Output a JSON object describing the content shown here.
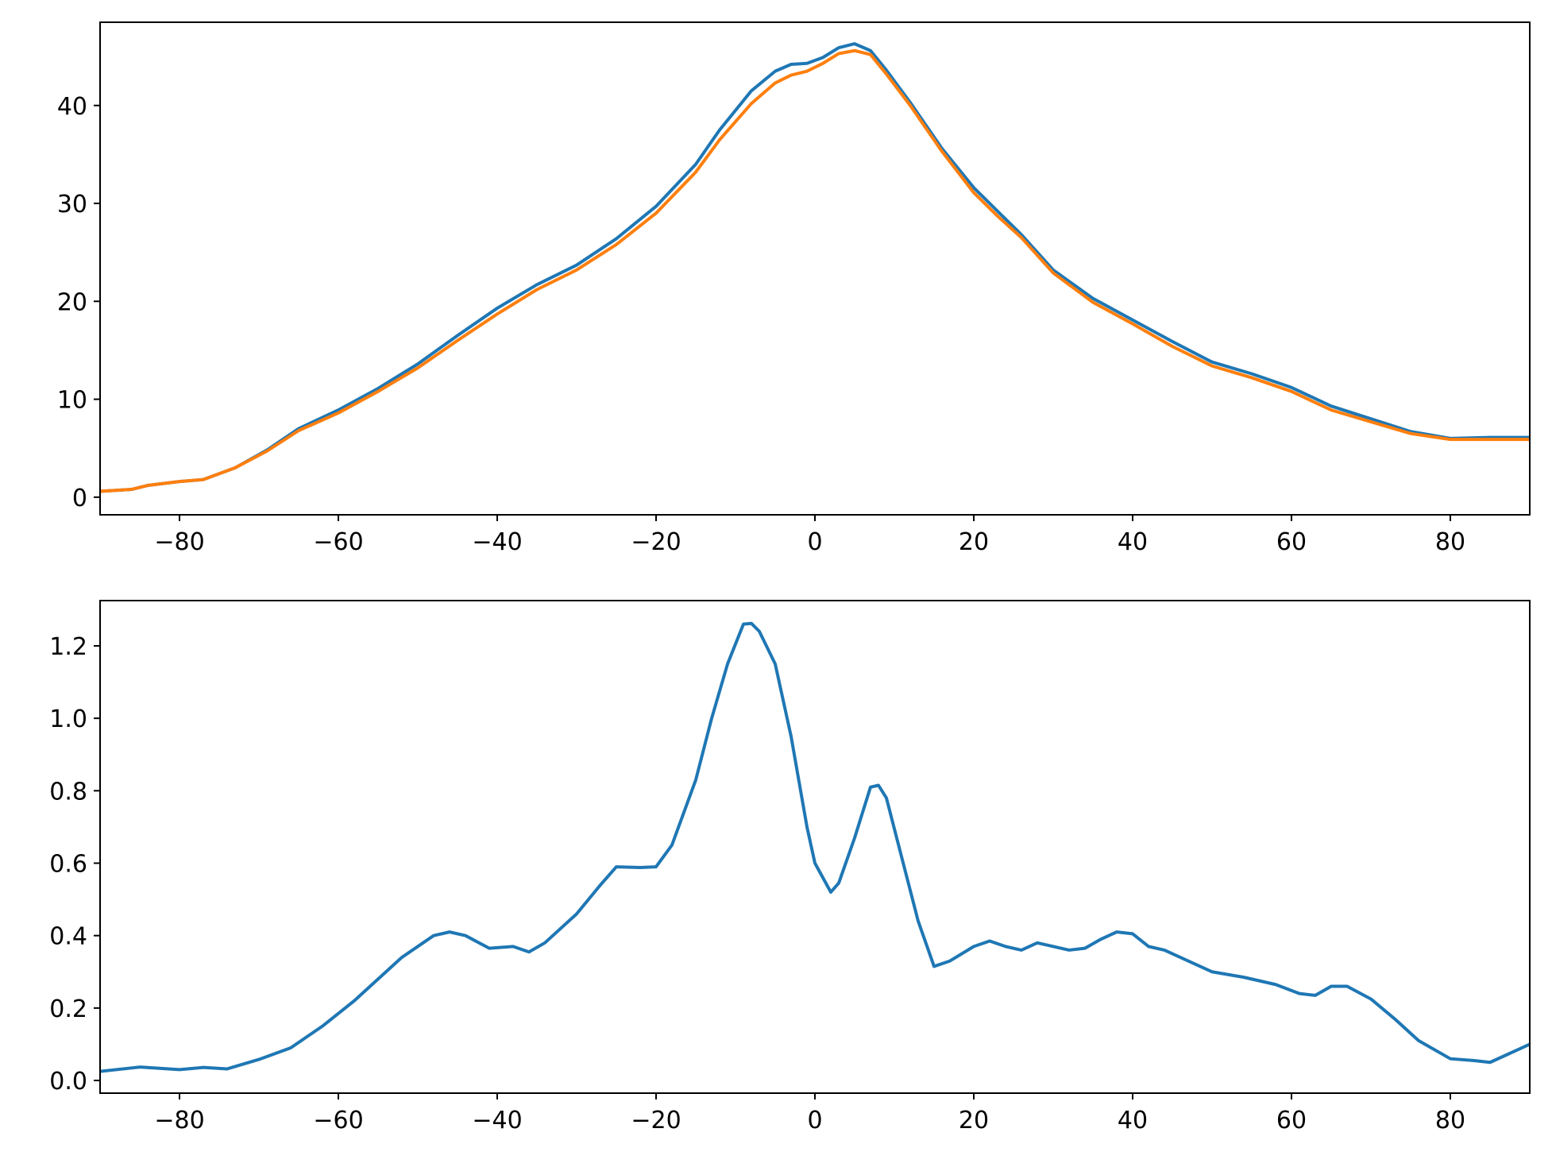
{
  "chart_data": [
    {
      "type": "line",
      "title": "",
      "xlabel": "",
      "ylabel": "",
      "xlim": [
        -90,
        90
      ],
      "ylim": [
        -1.8,
        48.5
      ],
      "xticks": [
        -80,
        -60,
        -40,
        -20,
        0,
        20,
        40,
        60,
        80
      ],
      "yticks": [
        0,
        10,
        20,
        30,
        40
      ],
      "xtick_labels": [
        "−80",
        "−60",
        "−40",
        "−20",
        "0",
        "20",
        "40",
        "60",
        "80"
      ],
      "ytick_labels": [
        "0",
        "10",
        "20",
        "30",
        "40"
      ],
      "grid": false,
      "legend": "none",
      "series": [
        {
          "color": "#1f77b4",
          "x": [
            -90,
            -86,
            -84,
            -80,
            -77,
            -73,
            -69,
            -65,
            -60,
            -55,
            -50,
            -45,
            -40,
            -35,
            -30,
            -25,
            -20,
            -15,
            -12,
            -8,
            -5,
            -3,
            -1,
            1,
            3,
            5,
            7,
            9,
            12,
            16,
            20,
            23,
            26,
            30,
            35,
            40,
            45,
            50,
            55,
            60,
            65,
            70,
            75,
            80,
            85,
            90
          ],
          "y": [
            0.6,
            0.8,
            1.2,
            1.6,
            1.8,
            3.0,
            4.8,
            7.0,
            8.9,
            11.1,
            13.6,
            16.5,
            19.3,
            21.7,
            23.7,
            26.4,
            29.7,
            34.0,
            37.5,
            41.5,
            43.5,
            44.2,
            44.3,
            44.9,
            45.9,
            46.3,
            45.6,
            43.6,
            40.3,
            35.6,
            31.6,
            29.2,
            26.8,
            23.2,
            20.3,
            18.1,
            15.9,
            13.8,
            12.6,
            11.2,
            9.3,
            8.0,
            6.7,
            6.0,
            6.1,
            6.1
          ]
        },
        {
          "color": "#ff7f0e",
          "x": [
            -90,
            -86,
            -84,
            -80,
            -77,
            -73,
            -69,
            -65,
            -60,
            -55,
            -50,
            -45,
            -40,
            -35,
            -30,
            -25,
            -20,
            -15,
            -12,
            -8,
            -5,
            -3,
            -1,
            1,
            3,
            5,
            7,
            9,
            12,
            16,
            20,
            23,
            26,
            30,
            35,
            40,
            45,
            50,
            55,
            60,
            65,
            70,
            75,
            80,
            85,
            90
          ],
          "y": [
            0.6,
            0.8,
            1.2,
            1.6,
            1.8,
            3.0,
            4.7,
            6.8,
            8.6,
            10.8,
            13.2,
            16.0,
            18.7,
            21.2,
            23.2,
            25.8,
            29.0,
            33.2,
            36.5,
            40.2,
            42.3,
            43.1,
            43.5,
            44.3,
            45.3,
            45.6,
            45.2,
            43.2,
            40.0,
            35.3,
            31.1,
            28.7,
            26.5,
            22.9,
            19.9,
            17.7,
            15.4,
            13.4,
            12.2,
            10.8,
            8.9,
            7.7,
            6.5,
            5.9,
            5.9,
            5.9
          ]
        }
      ]
    },
    {
      "type": "line",
      "title": "",
      "xlabel": "",
      "ylabel": "",
      "xlim": [
        -90,
        90
      ],
      "ylim": [
        -0.035,
        1.325
      ],
      "xticks": [
        -80,
        -60,
        -40,
        -20,
        0,
        20,
        40,
        60,
        80
      ],
      "yticks": [
        0.0,
        0.2,
        0.4,
        0.6,
        0.8,
        1.0,
        1.2
      ],
      "xtick_labels": [
        "−80",
        "−60",
        "−40",
        "−20",
        "0",
        "20",
        "40",
        "60",
        "80"
      ],
      "ytick_labels": [
        "0.0",
        "0.2",
        "0.4",
        "0.6",
        "0.8",
        "1.0",
        "1.2"
      ],
      "grid": false,
      "legend": "none",
      "series": [
        {
          "color": "#1f77b4",
          "x": [
            -90,
            -85,
            -80,
            -77,
            -74,
            -70,
            -66,
            -62,
            -58,
            -55,
            -52,
            -48,
            -46,
            -44,
            -41,
            -38,
            -36,
            -34,
            -30,
            -27,
            -25,
            -22,
            -20,
            -18,
            -15,
            -13,
            -11,
            -9,
            -8,
            -7,
            -5,
            -3,
            -1,
            0,
            1,
            2,
            3,
            5,
            7,
            8,
            9,
            11,
            13,
            15,
            17,
            20,
            22,
            24,
            26,
            28,
            32,
            34,
            36,
            38,
            40,
            42,
            44,
            46,
            50,
            54,
            58,
            61,
            63,
            65,
            67,
            70,
            73,
            76,
            80,
            83,
            85,
            87,
            90
          ],
          "y": [
            0.025,
            0.037,
            0.03,
            0.036,
            0.032,
            0.058,
            0.09,
            0.15,
            0.22,
            0.28,
            0.34,
            0.4,
            0.41,
            0.4,
            0.365,
            0.37,
            0.355,
            0.38,
            0.46,
            0.54,
            0.59,
            0.588,
            0.59,
            0.65,
            0.83,
            1.0,
            1.15,
            1.26,
            1.262,
            1.24,
            1.15,
            0.95,
            0.7,
            0.6,
            0.56,
            0.52,
            0.545,
            0.67,
            0.81,
            0.815,
            0.78,
            0.61,
            0.44,
            0.315,
            0.33,
            0.37,
            0.385,
            0.37,
            0.36,
            0.38,
            0.36,
            0.365,
            0.39,
            0.41,
            0.405,
            0.37,
            0.36,
            0.34,
            0.3,
            0.285,
            0.265,
            0.24,
            0.235,
            0.26,
            0.26,
            0.225,
            0.17,
            0.11,
            0.06,
            0.055,
            0.05,
            0.07,
            0.1
          ]
        }
      ]
    }
  ]
}
